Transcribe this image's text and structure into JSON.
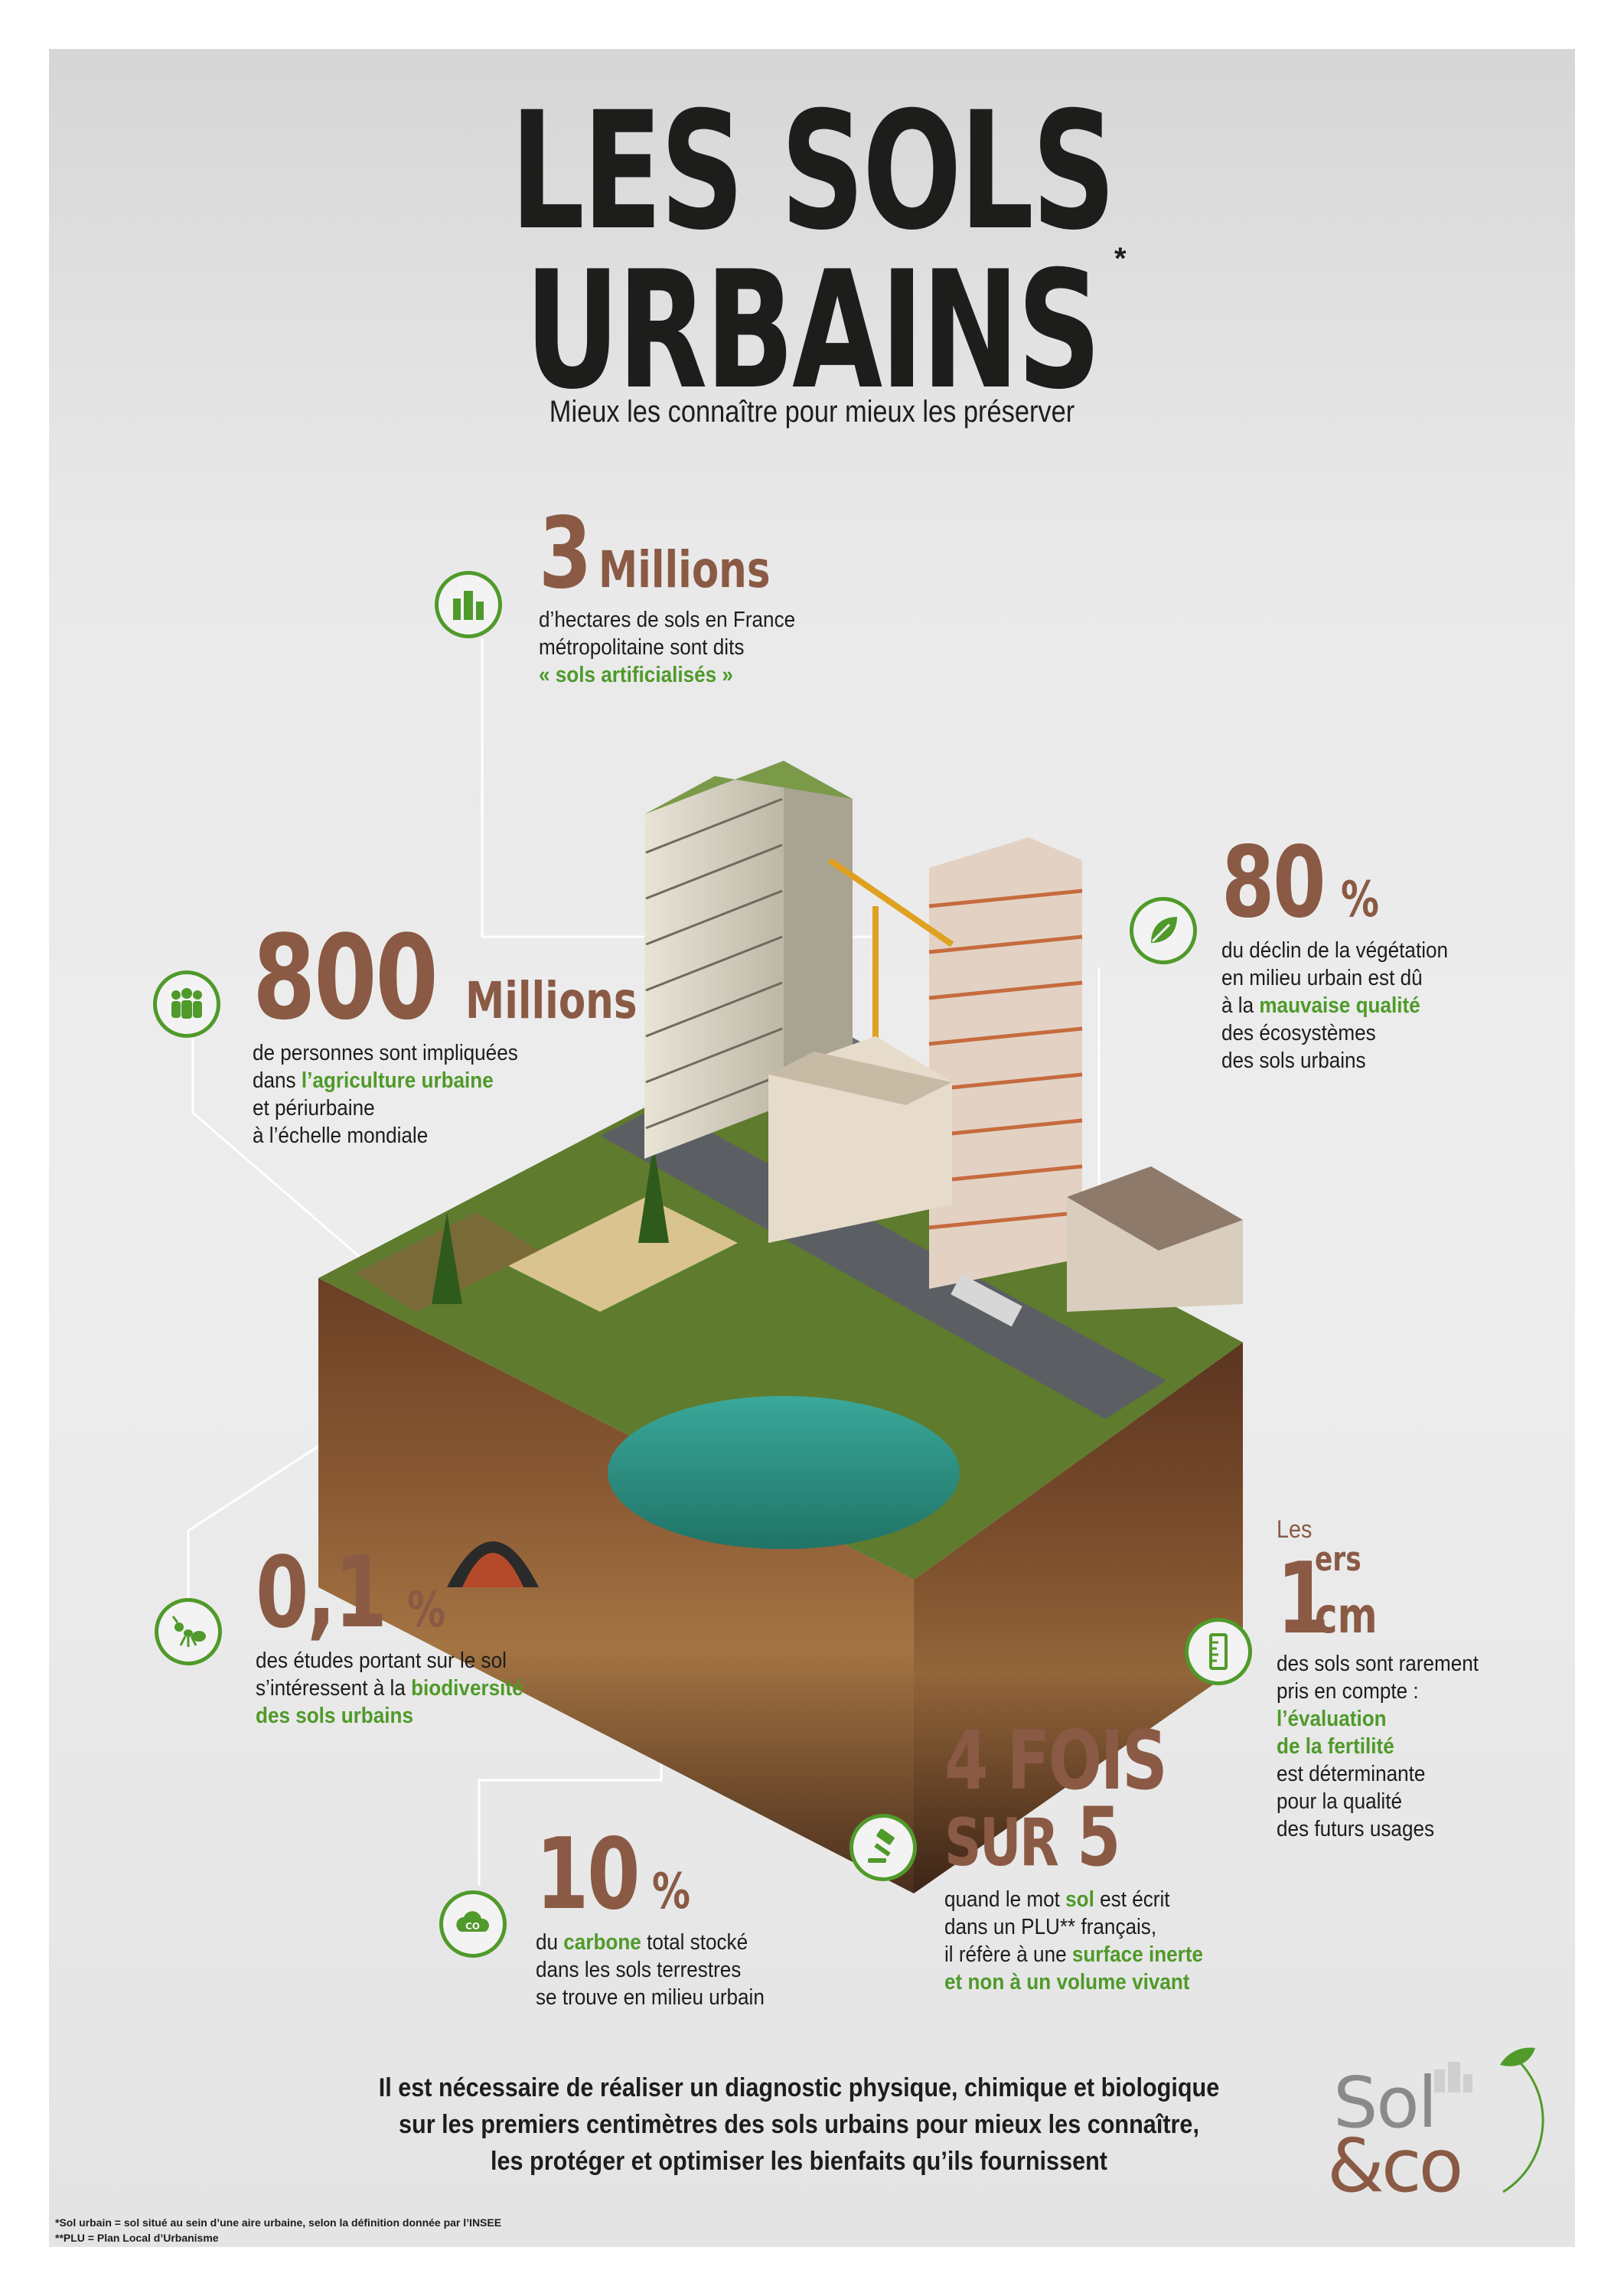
{
  "title": {
    "line1": "LES SOLS",
    "line2": "URBAINS",
    "asterisk": "*"
  },
  "subtitle": "Mieux les connaître pour mieux les préserver",
  "stats": {
    "hectares": {
      "value": "3",
      "unit": "Millions",
      "line1": "d’hectares de sols en France",
      "line2": "métropolitaine sont dits",
      "highlight": "« sols artificialisés »",
      "icon": "city-icon"
    },
    "agriculture": {
      "value": "800",
      "unit": "Millions",
      "line1": "de personnes sont impliquées",
      "line2_pre": "dans ",
      "highlight": "l’agriculture urbaine",
      "line3": "et périurbaine",
      "line4": "à l’échelle mondiale",
      "icon": "people-icon"
    },
    "vegetation": {
      "value": "80",
      "unit": "%",
      "line1": "du déclin de la végétation",
      "line2": "en milieu urbain est dû",
      "line3_pre": "à la ",
      "highlight": "mauvaise qualité",
      "line4": "des écosystèmes",
      "line5": "des sols urbains",
      "icon": "leaf-icon"
    },
    "biodiversity": {
      "value": "0,1",
      "unit": "%",
      "line1": "des études portant sur le sol",
      "line2_pre": "s’intéressent à la ",
      "highlight1": "biodiversité",
      "highlight2": "des sols urbains",
      "icon": "ant-icon"
    },
    "carbon": {
      "value": "10",
      "unit": "%",
      "line1_pre": "du ",
      "highlight": "carbone",
      "line1_post": " total stocké",
      "line2": "dans les sols terrestres",
      "line3": "se trouve en milieu urbain",
      "icon": "co2-icon"
    },
    "plu": {
      "line_a": "4 FOIS",
      "line_b_text": "SUR",
      "line_b_num": "5",
      "line1_pre": "quand le mot ",
      "highlight1": "sol",
      "line1_post": " est écrit",
      "line2": "dans un PLU** français,",
      "line3_pre": "il réfère à une ",
      "highlight2": "surface inerte",
      "highlight3": "et non à un volume vivant",
      "icon": "gavel-icon"
    },
    "centimeter": {
      "prefix": "Les",
      "value": "1",
      "sup": "ers",
      "unit": "cm",
      "line1": "des sols sont rarement",
      "line2": "pris en compte :",
      "highlight1": "l’évaluation",
      "highlight2": "de la fertilité",
      "line3": "est déterminante",
      "line4": "pour la qualité",
      "line5": "des futurs usages",
      "icon": "ruler-icon"
    }
  },
  "conclusion": {
    "line1": "Il est nécessaire de réaliser un diagnostic physique, chimique et biologique",
    "line2": "sur les premiers centimètres des sols urbains pour mieux les connaître,",
    "line3": "les protéger et optimiser les bienfaits qu’ils fournissent"
  },
  "footnotes": {
    "note1": "*Sol urbain = sol situé au sein d’une aire urbaine, selon la définition donnée par l’INSEE",
    "note2": "**PLU = Plan Local d’Urbanisme"
  },
  "logo": {
    "part1": "Sol",
    "part2": "&co"
  },
  "colors": {
    "accent_green": "#4f9a2a",
    "number_brown": "#8a5a45",
    "text": "#1d1d1b"
  }
}
